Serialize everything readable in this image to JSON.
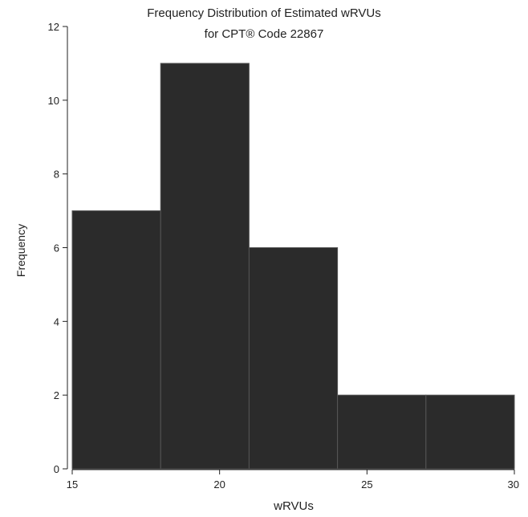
{
  "chart_data": {
    "type": "bar",
    "title": "Frequency Distribution of Estimated wRVUs",
    "subtitle": "for CPT® Code 22867",
    "xlabel": "wRVUs",
    "ylabel": "Frequency",
    "bins": [
      {
        "start": 15,
        "end": 18,
        "value": 7
      },
      {
        "start": 18,
        "end": 21,
        "value": 11
      },
      {
        "start": 21,
        "end": 24,
        "value": 6
      },
      {
        "start": 24,
        "end": 27,
        "value": 2
      },
      {
        "start": 27,
        "end": 30,
        "value": 2
      }
    ],
    "xlim": [
      15,
      30
    ],
    "ylim": [
      0,
      12
    ],
    "x_ticks": [
      "15",
      "20",
      "25",
      "30"
    ],
    "y_ticks": [
      "0",
      "2",
      "4",
      "6",
      "8",
      "10",
      "12"
    ],
    "bar_color": "#2b2b2b",
    "grid": false
  }
}
